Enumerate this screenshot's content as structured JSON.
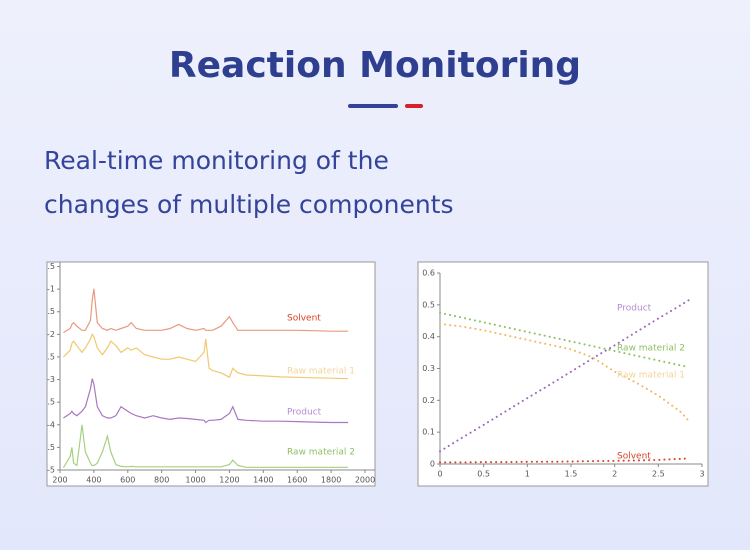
{
  "header": {
    "title": "Reaction Monitoring",
    "subtitle_lines": [
      "Real-time monitoring of the",
      "changes of multiple components"
    ]
  },
  "chart_data": [
    {
      "type": "line",
      "style": "solid",
      "x": [
        220,
        260,
        270,
        280,
        300,
        330,
        350,
        380,
        390,
        400,
        420,
        450,
        480,
        500,
        530,
        560,
        600,
        620,
        650,
        700,
        750,
        800,
        850,
        900,
        950,
        1000,
        1050,
        1060,
        1080,
        1100,
        1150,
        1200,
        1220,
        1250,
        1300,
        1400,
        1500,
        1600,
        1700,
        1800,
        1900
      ],
      "xlim": [
        200,
        2000
      ],
      "xticks": [
        200,
        400,
        600,
        800,
        1000,
        1200,
        1400,
        1600,
        1800,
        2000
      ],
      "ylim": [
        -5,
        -0.4
      ],
      "yticks": [
        {
          "value": -0.5,
          "label": ".5"
        },
        -1,
        {
          "value": -1.5,
          "label": ".5"
        },
        -2,
        {
          "value": -2.5,
          "label": ".5"
        },
        -3,
        {
          "value": -3.5,
          "label": ".5"
        },
        -4,
        {
          "value": -4.5,
          "label": ".5"
        },
        -5
      ],
      "series": [
        {
          "name": "Solvent",
          "color": "#e89a80",
          "label_color": "#d9402a",
          "values": [
            -1.96,
            -1.87,
            -1.78,
            -1.74,
            -1.82,
            -1.91,
            -1.91,
            -1.69,
            -1.25,
            -0.99,
            -1.74,
            -1.87,
            -1.91,
            -1.87,
            -1.91,
            -1.87,
            -1.82,
            -1.74,
            -1.87,
            -1.91,
            -1.91,
            -1.91,
            -1.87,
            -1.78,
            -1.87,
            -1.91,
            -1.87,
            -1.91,
            -1.91,
            -1.91,
            -1.82,
            -1.61,
            -1.74,
            -1.91,
            -1.91,
            -1.91,
            -1.91,
            -1.91,
            -1.92,
            -1.93,
            -1.93
          ]
        },
        {
          "name": "Raw material 1",
          "color": "#f0c870",
          "label_color": "#f2d49c",
          "values": [
            -2.5,
            -2.35,
            -2.2,
            -2.15,
            -2.25,
            -2.4,
            -2.3,
            -2.1,
            -2.0,
            -2.05,
            -2.3,
            -2.45,
            -2.3,
            -2.15,
            -2.25,
            -2.4,
            -2.3,
            -2.35,
            -2.3,
            -2.45,
            -2.5,
            -2.55,
            -2.55,
            -2.5,
            -2.55,
            -2.6,
            -2.4,
            -2.1,
            -2.75,
            -2.8,
            -2.85,
            -2.95,
            -2.75,
            -2.85,
            -2.9,
            -2.92,
            -2.94,
            -2.95,
            -2.96,
            -2.97,
            -2.98
          ]
        },
        {
          "name": "Product",
          "color": "#a878c0",
          "label_color": "#b68ad0",
          "values": [
            -3.85,
            -3.75,
            -3.7,
            -3.75,
            -3.8,
            -3.7,
            -3.6,
            -3.2,
            -2.98,
            -3.1,
            -3.6,
            -3.8,
            -3.85,
            -3.85,
            -3.8,
            -3.6,
            -3.7,
            -3.75,
            -3.8,
            -3.85,
            -3.8,
            -3.85,
            -3.88,
            -3.85,
            -3.86,
            -3.88,
            -3.9,
            -3.95,
            -3.9,
            -3.9,
            -3.88,
            -3.75,
            -3.6,
            -3.88,
            -3.9,
            -3.92,
            -3.92,
            -3.93,
            -3.94,
            -3.95,
            -3.95
          ]
        },
        {
          "name": "Raw material 2",
          "color": "#a8d080",
          "label_color": "#8dbf63",
          "values": [
            -4.95,
            -4.7,
            -4.5,
            -4.85,
            -4.9,
            -4.0,
            -4.6,
            -4.85,
            -4.9,
            -4.9,
            -4.85,
            -4.6,
            -4.25,
            -4.6,
            -4.88,
            -4.92,
            -4.93,
            -4.92,
            -4.93,
            -4.93,
            -4.93,
            -4.93,
            -4.93,
            -4.93,
            -4.93,
            -4.93,
            -4.93,
            -4.93,
            -4.93,
            -4.93,
            -4.93,
            -4.88,
            -4.78,
            -4.9,
            -4.94,
            -4.94,
            -4.94,
            -4.94,
            -4.94,
            -4.94,
            -4.94
          ]
        }
      ]
    },
    {
      "type": "line",
      "style": "dotted",
      "x": [
        0,
        0.25,
        0.5,
        0.75,
        1,
        1.25,
        1.5,
        1.75,
        2,
        2.25,
        2.5,
        2.75,
        2.85
      ],
      "xlim": [
        0,
        3
      ],
      "xticks": [
        0,
        0.5,
        1,
        1.5,
        2,
        2.5,
        3
      ],
      "ylim": [
        0,
        0.6
      ],
      "yticks": [
        0,
        0.1,
        0.2,
        0.3,
        0.4,
        0.5,
        0.6
      ],
      "series": [
        {
          "name": "Product",
          "color": "#9a6ab8",
          "label_color": "#b68ad0",
          "values": [
            0.04,
            0.082,
            0.123,
            0.165,
            0.207,
            0.248,
            0.29,
            0.332,
            0.373,
            0.415,
            0.457,
            0.498,
            0.515
          ]
        },
        {
          "name": "Raw material 2",
          "color": "#8dbf63",
          "label_color": "#8dbf63",
          "values": [
            0.475,
            0.46,
            0.445,
            0.43,
            0.415,
            0.4,
            0.385,
            0.37,
            0.355,
            0.34,
            0.325,
            0.31,
            0.305
          ]
        },
        {
          "name": "Raw material 1",
          "color": "#f0b860",
          "label_color": "#f2d49c",
          "values": [
            0.44,
            0.432,
            0.42,
            0.405,
            0.39,
            0.375,
            0.36,
            0.335,
            0.29,
            0.255,
            0.215,
            0.165,
            0.135
          ]
        },
        {
          "name": "Solvent",
          "color": "#d9402a",
          "label_color": "#d9402a",
          "values": [
            0.005,
            0.005,
            0.006,
            0.006,
            0.007,
            0.007,
            0.008,
            0.009,
            0.01,
            0.011,
            0.013,
            0.016,
            0.018
          ]
        }
      ]
    }
  ]
}
